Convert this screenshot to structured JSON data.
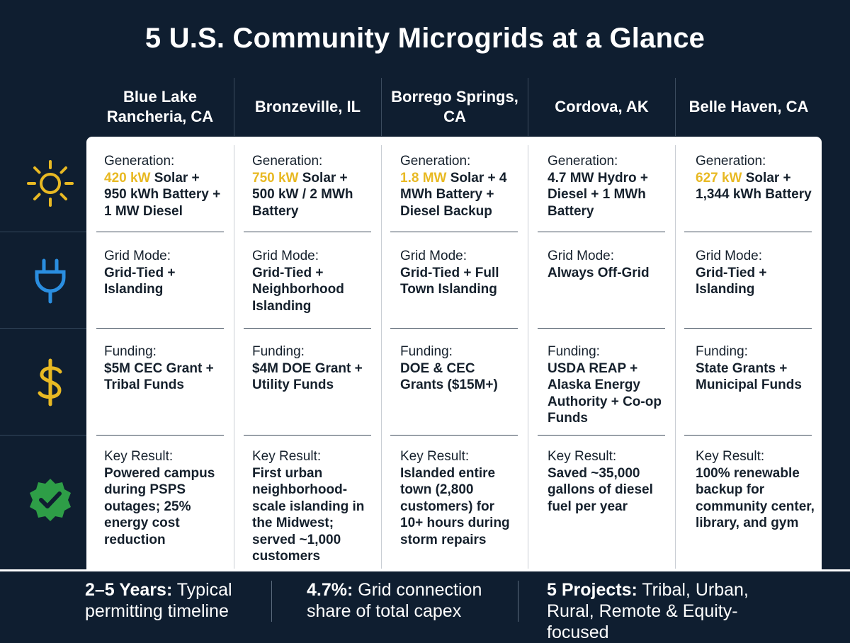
{
  "title": "5 U.S. Community Microgrids at a Glance",
  "colors": {
    "background": "#0f1e30",
    "highlight": "#e8b923",
    "grid_icon": "#2a8ee0",
    "badge": "#2e9e47"
  },
  "row_icons": [
    "sun-icon",
    "plug-icon",
    "dollar-icon",
    "verified-badge-icon"
  ],
  "columns": [
    {
      "name": "Blue Lake Rancheria, CA",
      "generation": {
        "label": "Generation:",
        "highlight": "420 kW",
        "text": " Solar + 950 kWh Battery + 1 MW Diesel"
      },
      "grid_mode": {
        "label": "Grid Mode:",
        "text": "Grid-Tied + Islanding"
      },
      "funding": {
        "label": "Funding:",
        "text": "$5M CEC Grant + Tribal Funds"
      },
      "key_result": {
        "label": "Key Result:",
        "text": "Powered campus during PSPS outages; 25% energy cost reduction"
      }
    },
    {
      "name": "Bronzeville, IL",
      "generation": {
        "label": "Generation:",
        "highlight": "750 kW",
        "text": " Solar + 500 kW / 2 MWh Battery"
      },
      "grid_mode": {
        "label": "Grid Mode:",
        "text": "Grid-Tied + Neighborhood Islanding"
      },
      "funding": {
        "label": "Funding:",
        "text": "$4M DOE Grant + Utility Funds"
      },
      "key_result": {
        "label": "Key Result:",
        "text": "First urban neighborhood-scale islanding in the Midwest; served ~1,000 customers"
      }
    },
    {
      "name": "Borrego Springs, CA",
      "generation": {
        "label": "Generation:",
        "highlight": "1.8 MW",
        "text": " Solar + 4 MWh Battery + Diesel Backup"
      },
      "grid_mode": {
        "label": "Grid Mode:",
        "text": "Grid-Tied + Full Town Islanding"
      },
      "funding": {
        "label": "Funding:",
        "text": "DOE & CEC Grants ($15M+)"
      },
      "key_result": {
        "label": "Key Result:",
        "text": "Islanded entire town (2,800 customers) for 10+ hours during storm repairs"
      }
    },
    {
      "name": "Cordova, AK",
      "generation": {
        "label": "Generation:",
        "highlight": "",
        "text": "4.7 MW Hydro + Diesel + 1 MWh Battery"
      },
      "grid_mode": {
        "label": "Grid Mode:",
        "text": "Always Off-Grid"
      },
      "funding": {
        "label": "Funding:",
        "text": "USDA REAP + Alaska Energy Authority + Co-op Funds"
      },
      "key_result": {
        "label": "Key Result:",
        "text": "Saved ~35,000 gallons of diesel fuel per year"
      }
    },
    {
      "name": "Belle Haven, CA",
      "generation": {
        "label": "Generation:",
        "highlight": "627 kW",
        "text": " Solar + 1,344 kWh Battery"
      },
      "grid_mode": {
        "label": "Grid Mode:",
        "text": "Grid-Tied + Islanding"
      },
      "funding": {
        "label": "Funding:",
        "text": "State Grants + Municipal Funds"
      },
      "key_result": {
        "label": "Key Result:",
        "text": "100% renewable backup for community center, library, and gym"
      }
    }
  ],
  "stats": [
    {
      "value": "2–5 Years:",
      "text": " Typical permitting timeline"
    },
    {
      "value": "4.7%:",
      "text": " Grid connection share of total capex"
    },
    {
      "value": "5 Projects:",
      "text": " Tribal, Urban, Rural, Remote & Equity-focused"
    }
  ]
}
